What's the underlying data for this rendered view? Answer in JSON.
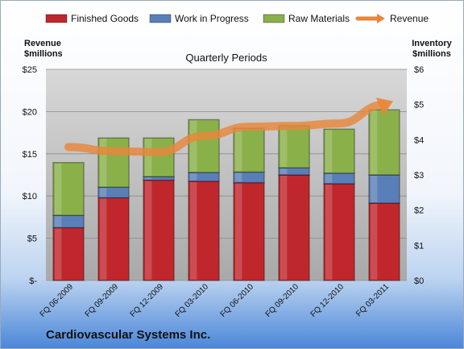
{
  "chart_data": {
    "type": "bar",
    "stacked": true,
    "subtitle": "Quarterly Periods",
    "company": "Cardiovascular Systems Inc.",
    "left_axis_title": [
      "Revenue",
      "$millions"
    ],
    "right_axis_title": [
      "Inventory",
      "$millions"
    ],
    "categories": [
      "FQ 06-2009",
      "FQ 09-2009",
      "FQ 12-2009",
      "FQ 03-2010",
      "FQ 06-2010",
      "FQ 09-2010",
      "FQ 12-2010",
      "FQ 03-2011"
    ],
    "left_ticks": [
      "$-",
      "$5",
      "$10",
      "$15",
      "$20",
      "$25"
    ],
    "right_ticks": [
      "$0",
      "$1",
      "$2",
      "$3",
      "$4",
      "$5",
      "$6"
    ],
    "left_ylim": [
      0,
      25
    ],
    "right_ylim": [
      0,
      6
    ],
    "grid": true,
    "legend_position": "top",
    "series": [
      {
        "name": "Finished Goods",
        "axis": "right",
        "color": "#c0272d",
        "values": [
          1.5,
          2.35,
          2.85,
          2.82,
          2.78,
          3.0,
          2.75,
          2.2
        ]
      },
      {
        "name": "Work in Progress",
        "axis": "right",
        "color": "#5a7fb8",
        "values": [
          0.35,
          0.3,
          0.1,
          0.25,
          0.3,
          0.2,
          0.3,
          0.8
        ]
      },
      {
        "name": "Raw Materials",
        "axis": "right",
        "color": "#8ab04a",
        "values": [
          1.5,
          1.4,
          1.1,
          1.5,
          1.25,
          1.2,
          1.25,
          1.85
        ]
      },
      {
        "name": "Revenue",
        "axis": "left",
        "type": "line",
        "color": "#e8863a",
        "values": [
          15.8,
          15.3,
          15.2,
          17.1,
          18.2,
          18.3,
          18.6,
          20.8
        ]
      }
    ]
  }
}
